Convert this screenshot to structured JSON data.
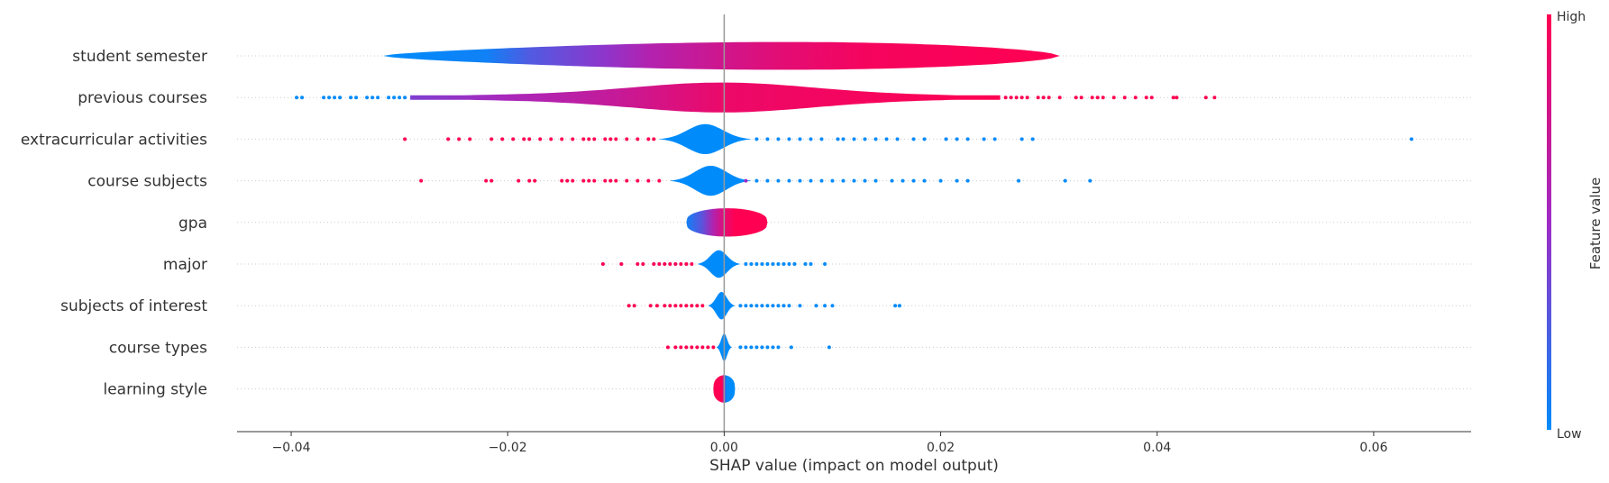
{
  "chart_data": {
    "type": "scatter",
    "subtype": "shap-violin-summary",
    "title": "",
    "xlabel": "SHAP value (impact on model output)",
    "ylabel": "",
    "xlim": [
      -0.045,
      0.069
    ],
    "x_ticks": [
      -0.04,
      -0.02,
      0.0,
      0.02,
      0.04,
      0.06
    ],
    "x_tick_labels": [
      "−0.04",
      "−0.02",
      "0.00",
      "0.02",
      "0.04",
      "0.06"
    ],
    "grid": false,
    "colorbar": {
      "label": "Feature value",
      "high_label": "High",
      "low_label": "Low",
      "low_color": "#008bfb",
      "high_color": "#ff0052"
    },
    "zero_line_color": "#999999",
    "features": [
      {
        "name": "student semester",
        "violin": {
          "xmin": -0.0315,
          "xmax": 0.031,
          "max_half_height": 0.42,
          "color_stops": [
            {
              "x": -0.0315,
              "c": 0.0
            },
            {
              "x": -0.022,
              "c": 0.05
            },
            {
              "x": -0.018,
              "c": 0.25
            },
            {
              "x": -0.011,
              "c": 0.45
            },
            {
              "x": -0.007,
              "c": 0.6
            },
            {
              "x": 0.0,
              "c": 0.75
            },
            {
              "x": 0.005,
              "c": 0.85
            },
            {
              "x": 0.013,
              "c": 0.95
            },
            {
              "x": 0.031,
              "c": 1.0
            }
          ]
        },
        "points": []
      },
      {
        "name": "previous courses",
        "violin": {
          "xmin": -0.029,
          "xmax": 0.0255,
          "max_half_height": 0.36,
          "color_stops": [
            {
              "x": -0.029,
              "c": 0.4
            },
            {
              "x": -0.02,
              "c": 0.55
            },
            {
              "x": -0.01,
              "c": 0.7
            },
            {
              "x": -0.005,
              "c": 0.8
            },
            {
              "x": 0.0,
              "c": 0.9
            },
            {
              "x": 0.0255,
              "c": 1.0
            }
          ]
        },
        "points": [
          {
            "x": -0.0395,
            "c": 0
          },
          {
            "x": -0.039,
            "c": 0
          },
          {
            "x": -0.037,
            "c": 0
          },
          {
            "x": -0.0365,
            "c": 0
          },
          {
            "x": -0.036,
            "c": 0
          },
          {
            "x": -0.0355,
            "c": 0
          },
          {
            "x": -0.0345,
            "c": 0
          },
          {
            "x": -0.034,
            "c": 0
          },
          {
            "x": -0.033,
            "c": 0
          },
          {
            "x": -0.0325,
            "c": 0
          },
          {
            "x": -0.032,
            "c": 0
          },
          {
            "x": -0.031,
            "c": 0
          },
          {
            "x": -0.0305,
            "c": 0
          },
          {
            "x": -0.03,
            "c": 0
          },
          {
            "x": -0.0295,
            "c": 0
          },
          {
            "x": 0.026,
            "c": 1
          },
          {
            "x": 0.0265,
            "c": 1
          },
          {
            "x": 0.027,
            "c": 1
          },
          {
            "x": 0.0275,
            "c": 1
          },
          {
            "x": 0.028,
            "c": 1
          },
          {
            "x": 0.029,
            "c": 1
          },
          {
            "x": 0.0295,
            "c": 1
          },
          {
            "x": 0.03,
            "c": 1
          },
          {
            "x": 0.031,
            "c": 1
          },
          {
            "x": 0.0325,
            "c": 1
          },
          {
            "x": 0.033,
            "c": 1
          },
          {
            "x": 0.034,
            "c": 1
          },
          {
            "x": 0.0345,
            "c": 1
          },
          {
            "x": 0.035,
            "c": 1
          },
          {
            "x": 0.036,
            "c": 1
          },
          {
            "x": 0.037,
            "c": 1
          },
          {
            "x": 0.038,
            "c": 1
          },
          {
            "x": 0.039,
            "c": 1
          },
          {
            "x": 0.0395,
            "c": 1
          },
          {
            "x": 0.0415,
            "c": 1
          },
          {
            "x": 0.0418,
            "c": 1
          },
          {
            "x": 0.0445,
            "c": 1
          },
          {
            "x": 0.0453,
            "c": 1
          }
        ]
      },
      {
        "name": "extracurricular activities",
        "violin": {
          "xmin": -0.006,
          "xmax": 0.0025,
          "max_half_height": 0.36,
          "color_stops": [
            {
              "x": -0.006,
              "c": 0.0
            },
            {
              "x": 0.0025,
              "c": 0.0
            }
          ]
        },
        "points": [
          {
            "x": -0.0295,
            "c": 1
          },
          {
            "x": -0.0255,
            "c": 1
          },
          {
            "x": -0.0245,
            "c": 1
          },
          {
            "x": -0.0235,
            "c": 1
          },
          {
            "x": -0.0215,
            "c": 1
          },
          {
            "x": -0.0205,
            "c": 1
          },
          {
            "x": -0.0195,
            "c": 1
          },
          {
            "x": -0.0185,
            "c": 1
          },
          {
            "x": -0.018,
            "c": 1
          },
          {
            "x": -0.017,
            "c": 1
          },
          {
            "x": -0.016,
            "c": 1
          },
          {
            "x": -0.015,
            "c": 1
          },
          {
            "x": -0.014,
            "c": 1
          },
          {
            "x": -0.013,
            "c": 1
          },
          {
            "x": -0.0125,
            "c": 1
          },
          {
            "x": -0.012,
            "c": 1
          },
          {
            "x": -0.011,
            "c": 1
          },
          {
            "x": -0.0105,
            "c": 1
          },
          {
            "x": -0.01,
            "c": 1
          },
          {
            "x": -0.009,
            "c": 1
          },
          {
            "x": -0.008,
            "c": 1
          },
          {
            "x": -0.007,
            "c": 1
          },
          {
            "x": -0.0065,
            "c": 1
          },
          {
            "x": 0.003,
            "c": 0
          },
          {
            "x": 0.004,
            "c": 0
          },
          {
            "x": 0.005,
            "c": 0
          },
          {
            "x": 0.006,
            "c": 0
          },
          {
            "x": 0.007,
            "c": 0
          },
          {
            "x": 0.008,
            "c": 0
          },
          {
            "x": 0.009,
            "c": 0
          },
          {
            "x": 0.0105,
            "c": 0
          },
          {
            "x": 0.011,
            "c": 0
          },
          {
            "x": 0.012,
            "c": 0
          },
          {
            "x": 0.013,
            "c": 0
          },
          {
            "x": 0.014,
            "c": 0
          },
          {
            "x": 0.015,
            "c": 0
          },
          {
            "x": 0.016,
            "c": 0
          },
          {
            "x": 0.0175,
            "c": 0
          },
          {
            "x": 0.0185,
            "c": 0
          },
          {
            "x": 0.0205,
            "c": 0
          },
          {
            "x": 0.0215,
            "c": 0
          },
          {
            "x": 0.0225,
            "c": 0
          },
          {
            "x": 0.024,
            "c": 0
          },
          {
            "x": 0.025,
            "c": 0
          },
          {
            "x": 0.0275,
            "c": 0
          },
          {
            "x": 0.0285,
            "c": 0
          },
          {
            "x": 0.0635,
            "c": 0
          }
        ]
      },
      {
        "name": "course subjects",
        "violin": {
          "xmin": -0.005,
          "xmax": 0.0025,
          "max_half_height": 0.36,
          "color_stops": [
            {
              "x": -0.005,
              "c": 0.0
            },
            {
              "x": 0.0025,
              "c": 0.0
            }
          ]
        },
        "points": [
          {
            "x": -0.028,
            "c": 1
          },
          {
            "x": -0.022,
            "c": 1
          },
          {
            "x": -0.0215,
            "c": 1
          },
          {
            "x": -0.019,
            "c": 1
          },
          {
            "x": -0.018,
            "c": 1
          },
          {
            "x": -0.0175,
            "c": 1
          },
          {
            "x": -0.015,
            "c": 1
          },
          {
            "x": -0.0145,
            "c": 1
          },
          {
            "x": -0.014,
            "c": 1
          },
          {
            "x": -0.013,
            "c": 1
          },
          {
            "x": -0.0125,
            "c": 1
          },
          {
            "x": -0.012,
            "c": 1
          },
          {
            "x": -0.011,
            "c": 1
          },
          {
            "x": -0.0105,
            "c": 1
          },
          {
            "x": -0.01,
            "c": 1
          },
          {
            "x": -0.009,
            "c": 1
          },
          {
            "x": -0.008,
            "c": 1
          },
          {
            "x": -0.007,
            "c": 1
          },
          {
            "x": -0.006,
            "c": 1
          },
          {
            "x": 0.002,
            "c": 0.5
          },
          {
            "x": 0.003,
            "c": 0
          },
          {
            "x": 0.004,
            "c": 0
          },
          {
            "x": 0.005,
            "c": 0
          },
          {
            "x": 0.006,
            "c": 0
          },
          {
            "x": 0.007,
            "c": 0
          },
          {
            "x": 0.008,
            "c": 0
          },
          {
            "x": 0.009,
            "c": 0
          },
          {
            "x": 0.01,
            "c": 0
          },
          {
            "x": 0.011,
            "c": 0
          },
          {
            "x": 0.012,
            "c": 0
          },
          {
            "x": 0.013,
            "c": 0
          },
          {
            "x": 0.014,
            "c": 0
          },
          {
            "x": 0.0155,
            "c": 0
          },
          {
            "x": 0.0165,
            "c": 0
          },
          {
            "x": 0.0175,
            "c": 0
          },
          {
            "x": 0.0185,
            "c": 0
          },
          {
            "x": 0.02,
            "c": 0
          },
          {
            "x": 0.0215,
            "c": 0
          },
          {
            "x": 0.0225,
            "c": 0
          },
          {
            "x": 0.0272,
            "c": 0
          },
          {
            "x": 0.0315,
            "c": 0
          },
          {
            "x": 0.0338,
            "c": 0
          }
        ]
      },
      {
        "name": "gpa",
        "violin": {
          "xmin": -0.0035,
          "xmax": 0.004,
          "max_half_height": 0.34,
          "color_stops": [
            {
              "x": -0.0035,
              "c": 0.05
            },
            {
              "x": -0.002,
              "c": 0.3
            },
            {
              "x": -0.001,
              "c": 0.6
            },
            {
              "x": 0.0,
              "c": 0.85
            },
            {
              "x": 0.001,
              "c": 1.0
            },
            {
              "x": 0.004,
              "c": 1.0
            }
          ]
        },
        "points": []
      },
      {
        "name": "major",
        "violin": {
          "xmin": -0.0025,
          "xmax": 0.0015,
          "max_half_height": 0.33,
          "color_stops": [
            {
              "x": -0.0025,
              "c": 0.0
            },
            {
              "x": 0.0015,
              "c": 0.0
            }
          ]
        },
        "points": [
          {
            "x": -0.0112,
            "c": 1
          },
          {
            "x": -0.0095,
            "c": 1
          },
          {
            "x": -0.008,
            "c": 1
          },
          {
            "x": -0.0075,
            "c": 1
          },
          {
            "x": -0.0065,
            "c": 1
          },
          {
            "x": -0.006,
            "c": 1
          },
          {
            "x": -0.0055,
            "c": 1
          },
          {
            "x": -0.005,
            "c": 1
          },
          {
            "x": -0.0045,
            "c": 1
          },
          {
            "x": -0.004,
            "c": 1
          },
          {
            "x": -0.0035,
            "c": 1
          },
          {
            "x": -0.003,
            "c": 1
          },
          {
            "x": 0.002,
            "c": 0
          },
          {
            "x": 0.0025,
            "c": 0
          },
          {
            "x": 0.003,
            "c": 0
          },
          {
            "x": 0.0035,
            "c": 0
          },
          {
            "x": 0.004,
            "c": 0
          },
          {
            "x": 0.0045,
            "c": 0
          },
          {
            "x": 0.005,
            "c": 0
          },
          {
            "x": 0.0055,
            "c": 0
          },
          {
            "x": 0.006,
            "c": 0
          },
          {
            "x": 0.0065,
            "c": 0
          },
          {
            "x": 0.0075,
            "c": 0
          },
          {
            "x": 0.008,
            "c": 0
          },
          {
            "x": 0.0093,
            "c": 0
          }
        ]
      },
      {
        "name": "subjects of interest",
        "violin": {
          "xmin": -0.0015,
          "xmax": 0.001,
          "max_half_height": 0.33,
          "color_stops": [
            {
              "x": -0.0015,
              "c": 0.0
            },
            {
              "x": 0.001,
              "c": 0.0
            }
          ]
        },
        "points": [
          {
            "x": -0.0088,
            "c": 1
          },
          {
            "x": -0.0083,
            "c": 1
          },
          {
            "x": -0.0068,
            "c": 1
          },
          {
            "x": -0.0062,
            "c": 1
          },
          {
            "x": -0.0055,
            "c": 1
          },
          {
            "x": -0.005,
            "c": 1
          },
          {
            "x": -0.0045,
            "c": 1
          },
          {
            "x": -0.004,
            "c": 1
          },
          {
            "x": -0.0035,
            "c": 1
          },
          {
            "x": -0.003,
            "c": 1
          },
          {
            "x": -0.0025,
            "c": 1
          },
          {
            "x": -0.002,
            "c": 1
          },
          {
            "x": 0.0015,
            "c": 0
          },
          {
            "x": 0.002,
            "c": 0
          },
          {
            "x": 0.0025,
            "c": 0
          },
          {
            "x": 0.003,
            "c": 0
          },
          {
            "x": 0.0035,
            "c": 0
          },
          {
            "x": 0.004,
            "c": 0
          },
          {
            "x": 0.0045,
            "c": 0
          },
          {
            "x": 0.005,
            "c": 0
          },
          {
            "x": 0.0055,
            "c": 0
          },
          {
            "x": 0.006,
            "c": 0
          },
          {
            "x": 0.007,
            "c": 0
          },
          {
            "x": 0.0085,
            "c": 0
          },
          {
            "x": 0.0093,
            "c": 0
          },
          {
            "x": 0.01,
            "c": 0
          },
          {
            "x": 0.0158,
            "c": 0
          },
          {
            "x": 0.0162,
            "c": 0
          }
        ]
      },
      {
        "name": "course types",
        "violin": {
          "xmin": -0.0007,
          "xmax": 0.0007,
          "max_half_height": 0.33,
          "color_stops": [
            {
              "x": -0.0007,
              "c": 0.0
            },
            {
              "x": 0.0007,
              "c": 0.0
            }
          ]
        },
        "points": [
          {
            "x": -0.0052,
            "c": 1
          },
          {
            "x": -0.0045,
            "c": 1
          },
          {
            "x": -0.004,
            "c": 1
          },
          {
            "x": -0.0035,
            "c": 1
          },
          {
            "x": -0.003,
            "c": 1
          },
          {
            "x": -0.0025,
            "c": 1
          },
          {
            "x": -0.002,
            "c": 1
          },
          {
            "x": -0.0015,
            "c": 1
          },
          {
            "x": -0.001,
            "c": 1
          },
          {
            "x": 0.0015,
            "c": 0
          },
          {
            "x": 0.002,
            "c": 0
          },
          {
            "x": 0.0025,
            "c": 0
          },
          {
            "x": 0.003,
            "c": 0
          },
          {
            "x": 0.0035,
            "c": 0
          },
          {
            "x": 0.004,
            "c": 0
          },
          {
            "x": 0.0045,
            "c": 0
          },
          {
            "x": 0.005,
            "c": 0
          },
          {
            "x": 0.0062,
            "c": 0
          },
          {
            "x": 0.0097,
            "c": 0
          }
        ]
      },
      {
        "name": "learning style",
        "violin": {
          "xmin": -0.001,
          "xmax": 0.001,
          "max_half_height": 0.33,
          "color_stops": [
            {
              "x": -0.001,
              "c": 1.0
            },
            {
              "x": -0.0002,
              "c": 1.0
            },
            {
              "x": 0.0,
              "c": 0.5
            },
            {
              "x": 0.0002,
              "c": 0.0
            },
            {
              "x": 0.001,
              "c": 0.0
            }
          ]
        },
        "points": []
      }
    ]
  }
}
